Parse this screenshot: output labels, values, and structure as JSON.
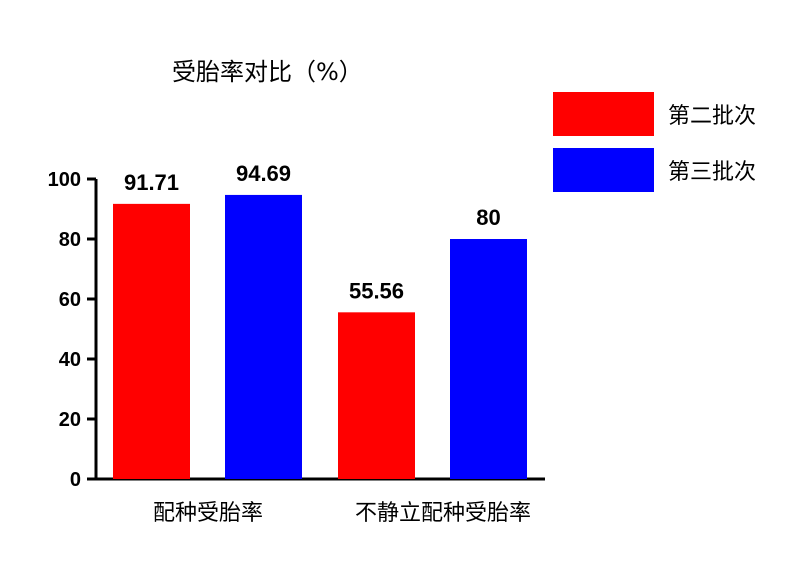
{
  "chart_data": {
    "type": "bar",
    "title": "受胎率对比（%）",
    "xlabel": "",
    "ylabel": "",
    "ylim": [
      0,
      100
    ],
    "yticks": [
      "0",
      "20",
      "40",
      "60",
      "80",
      "100"
    ],
    "legend_position": "top-right",
    "bars": [
      {
        "category": "配种受胎率",
        "series": "第二批次",
        "value": 91.71,
        "label": "91.71",
        "color": "#ff0000"
      },
      {
        "category": "配种受胎率",
        "series": "第三批次",
        "value": 94.69,
        "label": "94.69",
        "color": "#0000ff"
      },
      {
        "category": "不静立配种受胎率",
        "series": "第二批次",
        "value": 55.56,
        "label": "55.56",
        "color": "#ff0000"
      },
      {
        "category": "不静立配种受胎率",
        "series": "第三批次",
        "value": 80,
        "label": "80",
        "color": "#0000ff"
      }
    ],
    "categories": [
      "配种受胎率",
      "不静立配种受胎率"
    ],
    "series": [
      {
        "name": "第二批次",
        "color": "#ff0000",
        "values": [
          91.71,
          55.56
        ]
      },
      {
        "name": "第三批次",
        "color": "#0000ff",
        "values": [
          94.69,
          80
        ]
      }
    ],
    "legend": [
      {
        "name": "第二批次",
        "color": "#ff0000"
      },
      {
        "name": "第三批次",
        "color": "#0000ff"
      }
    ]
  }
}
